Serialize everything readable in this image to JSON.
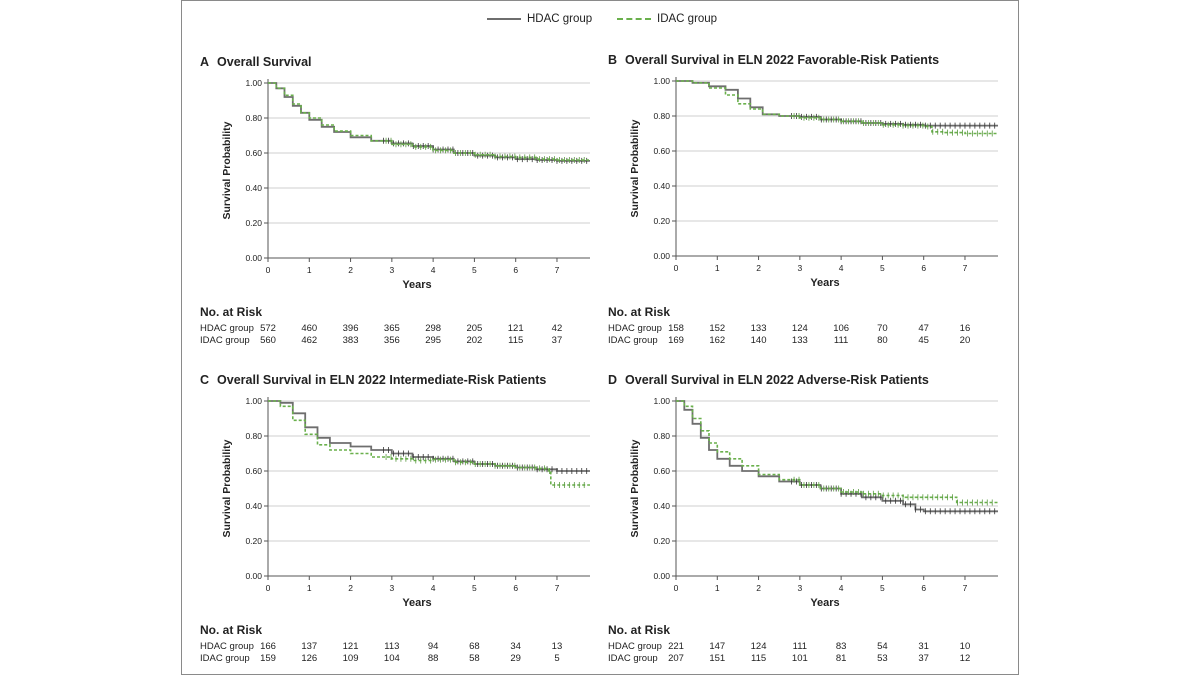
{
  "legend": {
    "hdac": {
      "label": "HDAC group",
      "color": "#6e6e6e"
    },
    "idac": {
      "label": "IDAC group",
      "color": "#6ab04c"
    }
  },
  "no_at_risk_title": "No. at Risk",
  "chart_data": [
    {
      "type": "line",
      "letter": "A",
      "title": "Overall Survival",
      "xlabel": "Years",
      "ylabel": "Survival Probability",
      "xlim": [
        0,
        7.8
      ],
      "ylim": [
        0,
        1
      ],
      "xticks": [
        "0",
        "1",
        "2",
        "3",
        "4",
        "5",
        "6",
        "7"
      ],
      "yticks": [
        "0.00",
        "0.20",
        "0.40",
        "0.60",
        "0.80",
        "1.00"
      ],
      "series": [
        {
          "name": "HDAC group",
          "x": [
            0,
            0.2,
            0.4,
            0.6,
            0.8,
            1,
            1.3,
            1.6,
            2,
            2.5,
            3,
            3.5,
            4,
            4.5,
            5,
            5.5,
            6,
            6.5,
            7,
            7.8
          ],
          "y": [
            1,
            0.97,
            0.92,
            0.87,
            0.83,
            0.79,
            0.75,
            0.72,
            0.69,
            0.67,
            0.655,
            0.64,
            0.62,
            0.6,
            0.585,
            0.575,
            0.565,
            0.56,
            0.555,
            0.555
          ]
        },
        {
          "name": "IDAC group",
          "x": [
            0,
            0.2,
            0.4,
            0.6,
            0.8,
            1,
            1.3,
            1.6,
            2,
            2.5,
            3,
            3.5,
            4,
            4.5,
            5,
            5.5,
            6,
            6.5,
            7,
            7.8
          ],
          "y": [
            1,
            0.97,
            0.93,
            0.88,
            0.83,
            0.8,
            0.76,
            0.725,
            0.7,
            0.67,
            0.65,
            0.635,
            0.615,
            0.6,
            0.59,
            0.58,
            0.575,
            0.565,
            0.56,
            0.56
          ]
        }
      ],
      "risk_table": {
        "times": [
          0,
          1,
          2,
          3,
          4,
          5,
          6,
          7
        ],
        "rows": [
          {
            "label": "HDAC group",
            "values": [
              "572",
              "460",
              "396",
              "365",
              "298",
              "205",
              "121",
              "42"
            ]
          },
          {
            "label": "IDAC group",
            "values": [
              "560",
              "462",
              "383",
              "356",
              "295",
              "202",
              "115",
              "37"
            ]
          }
        ]
      }
    },
    {
      "type": "line",
      "letter": "B",
      "title": "Overall Survival in ELN 2022 Favorable-Risk Patients",
      "xlabel": "Years",
      "ylabel": "Survival Probability",
      "xlim": [
        0,
        7.8
      ],
      "ylim": [
        0,
        1
      ],
      "xticks": [
        "0",
        "1",
        "2",
        "3",
        "4",
        "5",
        "6",
        "7"
      ],
      "yticks": [
        "0.00",
        "0.20",
        "0.40",
        "0.60",
        "0.80",
        "1.00"
      ],
      "series": [
        {
          "name": "HDAC group",
          "x": [
            0,
            0.4,
            0.8,
            1.2,
            1.5,
            1.8,
            2.1,
            2.5,
            3,
            3.5,
            4,
            4.5,
            5,
            5.5,
            6,
            6.5,
            7,
            7.8
          ],
          "y": [
            1,
            0.99,
            0.97,
            0.95,
            0.9,
            0.85,
            0.81,
            0.8,
            0.795,
            0.78,
            0.77,
            0.76,
            0.755,
            0.75,
            0.745,
            0.745,
            0.745,
            0.745
          ]
        },
        {
          "name": "IDAC group",
          "x": [
            0,
            0.4,
            0.8,
            1.2,
            1.5,
            1.8,
            2.1,
            2.5,
            3,
            3.5,
            4,
            4.5,
            5,
            5.5,
            6,
            6.2,
            6.5,
            7,
            7.8
          ],
          "y": [
            1,
            0.99,
            0.96,
            0.92,
            0.87,
            0.84,
            0.81,
            0.8,
            0.79,
            0.78,
            0.77,
            0.76,
            0.75,
            0.745,
            0.74,
            0.71,
            0.705,
            0.7,
            0.7
          ]
        }
      ],
      "risk_table": {
        "times": [
          0,
          1,
          2,
          3,
          4,
          5,
          6,
          7
        ],
        "rows": [
          {
            "label": "HDAC group",
            "values": [
              "158",
              "152",
              "133",
              "124",
              "106",
              "70",
              "47",
              "16"
            ]
          },
          {
            "label": "IDAC group",
            "values": [
              "169",
              "162",
              "140",
              "133",
              "111",
              "80",
              "45",
              "20"
            ]
          }
        ]
      }
    },
    {
      "type": "line",
      "letter": "C",
      "title": "Overall Survival in ELN 2022 Intermediate-Risk Patients",
      "xlabel": "Years",
      "ylabel": "Survival Probability",
      "xlim": [
        0,
        7.8
      ],
      "ylim": [
        0,
        1
      ],
      "xticks": [
        "0",
        "1",
        "2",
        "3",
        "4",
        "5",
        "6",
        "7"
      ],
      "yticks": [
        "0.00",
        "0.20",
        "0.40",
        "0.60",
        "0.80",
        "1.00"
      ],
      "series": [
        {
          "name": "HDAC group",
          "x": [
            0,
            0.3,
            0.6,
            0.9,
            1.2,
            1.5,
            2,
            2.5,
            3,
            3.5,
            4,
            4.5,
            5,
            5.5,
            6,
            6.5,
            7,
            7.8
          ],
          "y": [
            1,
            0.99,
            0.93,
            0.85,
            0.79,
            0.76,
            0.74,
            0.72,
            0.7,
            0.68,
            0.67,
            0.655,
            0.64,
            0.63,
            0.62,
            0.61,
            0.6,
            0.6
          ]
        },
        {
          "name": "IDAC group",
          "x": [
            0,
            0.3,
            0.6,
            0.9,
            1.2,
            1.5,
            2,
            2.5,
            3,
            3.5,
            4,
            4.5,
            5,
            5.5,
            6,
            6.5,
            6.8,
            6.85,
            7,
            7.3,
            7.8
          ],
          "y": [
            1,
            0.97,
            0.89,
            0.81,
            0.75,
            0.72,
            0.7,
            0.68,
            0.67,
            0.66,
            0.665,
            0.65,
            0.64,
            0.63,
            0.62,
            0.615,
            0.6,
            0.52,
            0.52,
            0.52,
            0.52
          ]
        }
      ],
      "risk_table": {
        "times": [
          0,
          1,
          2,
          3,
          4,
          5,
          6,
          7
        ],
        "rows": [
          {
            "label": "HDAC group",
            "values": [
              "166",
              "137",
              "121",
              "113",
              "94",
              "68",
              "34",
              "13"
            ]
          },
          {
            "label": "IDAC group",
            "values": [
              "159",
              "126",
              "109",
              "104",
              "88",
              "58",
              "29",
              "5"
            ]
          }
        ]
      }
    },
    {
      "type": "line",
      "letter": "D",
      "title": "Overall Survival in ELN 2022 Adverse-Risk Patients",
      "xlabel": "Years",
      "ylabel": "Survival Probability",
      "xlim": [
        0,
        7.8
      ],
      "ylim": [
        0,
        1
      ],
      "xticks": [
        "0",
        "1",
        "2",
        "3",
        "4",
        "5",
        "6",
        "7"
      ],
      "yticks": [
        "0.00",
        "0.20",
        "0.40",
        "0.60",
        "0.80",
        "1.00"
      ],
      "series": [
        {
          "name": "HDAC group",
          "x": [
            0,
            0.2,
            0.4,
            0.6,
            0.8,
            1,
            1.3,
            1.6,
            2,
            2.5,
            3,
            3.5,
            4,
            4.5,
            5,
            5.5,
            5.8,
            6,
            6.5,
            7,
            7.8
          ],
          "y": [
            1,
            0.95,
            0.87,
            0.79,
            0.72,
            0.67,
            0.63,
            0.6,
            0.57,
            0.54,
            0.52,
            0.5,
            0.47,
            0.45,
            0.43,
            0.41,
            0.38,
            0.37,
            0.37,
            0.37,
            0.37
          ]
        },
        {
          "name": "IDAC group",
          "x": [
            0,
            0.2,
            0.4,
            0.6,
            0.8,
            1,
            1.3,
            1.6,
            2,
            2.5,
            3,
            3.5,
            4,
            4.5,
            5,
            5.5,
            6,
            6.5,
            6.8,
            7,
            7.8
          ],
          "y": [
            1,
            0.97,
            0.9,
            0.83,
            0.76,
            0.71,
            0.67,
            0.63,
            0.58,
            0.55,
            0.52,
            0.5,
            0.48,
            0.47,
            0.46,
            0.45,
            0.45,
            0.45,
            0.42,
            0.42,
            0.42
          ]
        }
      ],
      "risk_table": {
        "times": [
          0,
          1,
          2,
          3,
          4,
          5,
          6,
          7
        ],
        "rows": [
          {
            "label": "HDAC group",
            "values": [
              "221",
              "147",
              "124",
              "111",
              "83",
              "54",
              "31",
              "10"
            ]
          },
          {
            "label": "IDAC group",
            "values": [
              "207",
              "151",
              "115",
              "101",
              "81",
              "53",
              "37",
              "12"
            ]
          }
        ]
      }
    }
  ]
}
